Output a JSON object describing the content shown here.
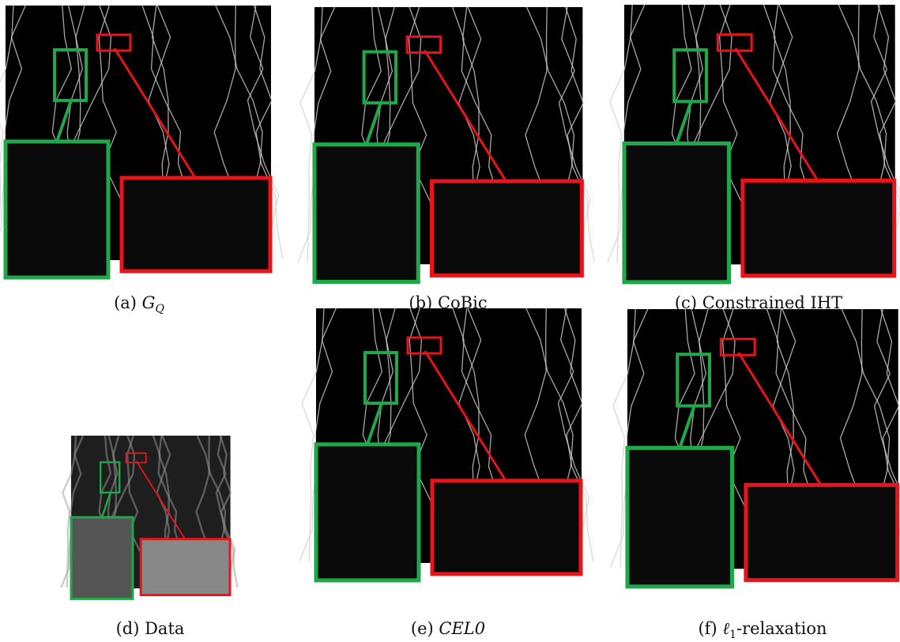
{
  "panels": [
    {
      "label": "(a)",
      "symbol": "G",
      "subscript": "Q"
    },
    {
      "label": "(b)",
      "name": "CoBic"
    },
    {
      "label": "(c)",
      "name": "Constrained IHT"
    },
    {
      "label": "(d)",
      "name": "Data"
    },
    {
      "label": "(e)",
      "symbol": "CEL0"
    },
    {
      "label": "(f)",
      "symbol": "ℓ",
      "subscript": "1",
      "name": "-relaxation"
    }
  ]
}
